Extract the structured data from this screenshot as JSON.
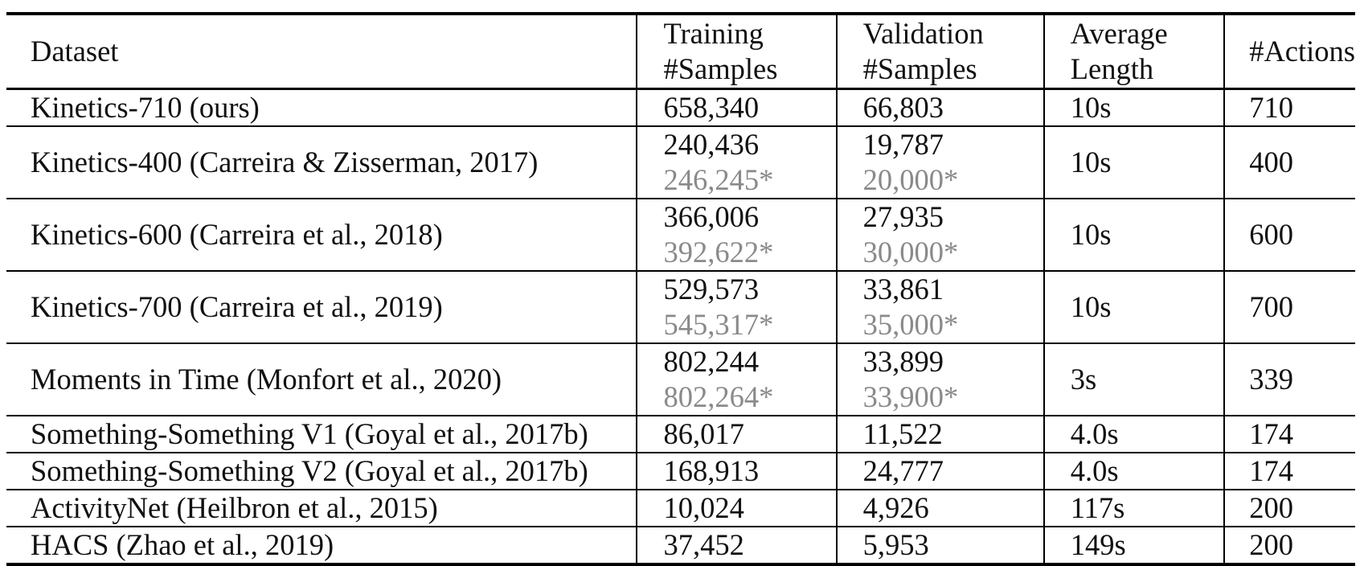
{
  "headers": {
    "dataset": "Dataset",
    "training_line1": "Training",
    "training_line2": "#Samples",
    "validation_line1": "Validation",
    "validation_line2": "#Samples",
    "length_line1": "Average",
    "length_line2": "Length",
    "actions": "#Actions"
  },
  "rows": [
    {
      "dataset": "Kinetics-710 (ours)",
      "train": "658,340",
      "train_alt": "",
      "val": "66,803",
      "val_alt": "",
      "length": "10s",
      "actions": "710"
    },
    {
      "dataset": "Kinetics-400 (Carreira & Zisserman, 2017)",
      "train": "240,436",
      "train_alt": "246,245*",
      "val": "19,787",
      "val_alt": "20,000*",
      "length": "10s",
      "actions": "400"
    },
    {
      "dataset": "Kinetics-600 (Carreira et al., 2018)",
      "train": "366,006",
      "train_alt": "392,622*",
      "val": "27,935",
      "val_alt": "30,000*",
      "length": "10s",
      "actions": "600"
    },
    {
      "dataset": "Kinetics-700 (Carreira et al., 2019)",
      "train": "529,573",
      "train_alt": "545,317*",
      "val": "33,861",
      "val_alt": "35,000*",
      "length": "10s",
      "actions": "700"
    },
    {
      "dataset": "Moments in Time (Monfort et al., 2020)",
      "train": "802,244",
      "train_alt": "802,264*",
      "val": "33,899",
      "val_alt": "33,900*",
      "length": "3s",
      "actions": "339"
    },
    {
      "dataset": "Something-Something V1 (Goyal et al., 2017b)",
      "train": "86,017",
      "train_alt": "",
      "val": "11,522",
      "val_alt": "",
      "length": "4.0s",
      "actions": "174"
    },
    {
      "dataset": "Something-Something V2 (Goyal et al., 2017b)",
      "train": "168,913",
      "train_alt": "",
      "val": "24,777",
      "val_alt": "",
      "length": "4.0s",
      "actions": "174"
    },
    {
      "dataset": "ActivityNet (Heilbron et al., 2015)",
      "train": "10,024",
      "train_alt": "",
      "val": "4,926",
      "val_alt": "",
      "length": "117s",
      "actions": "200"
    },
    {
      "dataset": "HACS (Zhao et al., 2019)",
      "train": "37,452",
      "train_alt": "",
      "val": "5,953",
      "val_alt": "",
      "length": "149s",
      "actions": "200"
    }
  ]
}
